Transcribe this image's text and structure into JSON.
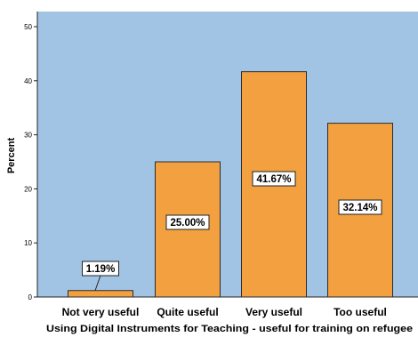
{
  "chart_data": {
    "type": "bar",
    "categories": [
      "Not very useful",
      "Quite useful",
      "Very useful",
      "Too useful"
    ],
    "values": [
      1.19,
      25.0,
      41.67,
      32.14
    ],
    "data_labels": [
      "1.19%",
      "25.00%",
      "41.67%",
      "32.14%"
    ],
    "xlabel": "Using Digital Instruments for Teaching  - useful for training on refugee",
    "ylabel": "Percent",
    "ylim": [
      0,
      50
    ],
    "yticks": [
      0,
      10,
      20,
      30,
      40,
      50
    ],
    "ytick_labels": [
      "0",
      "10",
      "20",
      "30",
      "40",
      "50"
    ],
    "grid": false,
    "colors": {
      "plot_background": "#a2c4e4",
      "bar_fill": "#f3a040",
      "bar_stroke": "#2b2b2b",
      "label_box": "#ffffff"
    }
  }
}
